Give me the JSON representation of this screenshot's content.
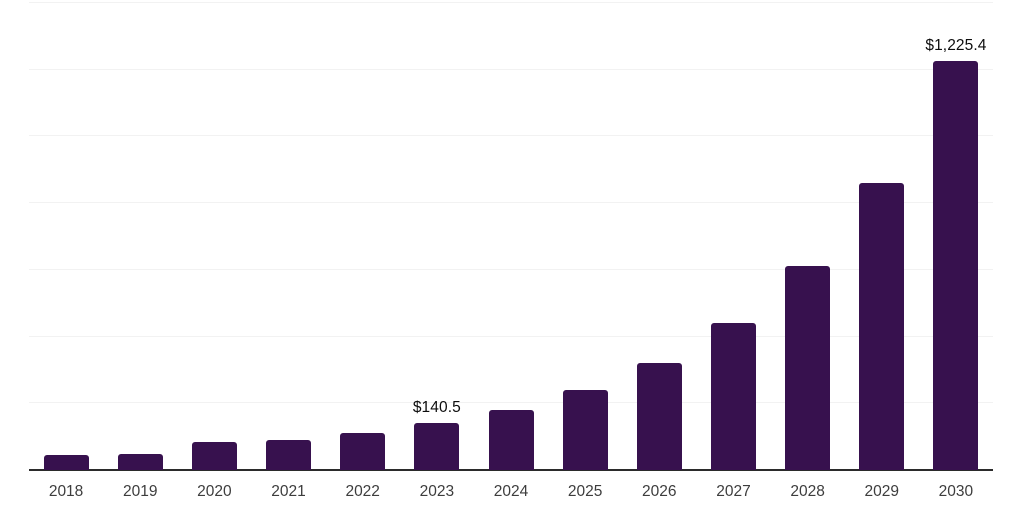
{
  "chart_data": {
    "type": "bar",
    "title": "",
    "xlabel": "",
    "ylabel": "",
    "categories": [
      "2018",
      "2019",
      "2020",
      "2021",
      "2022",
      "2023",
      "2024",
      "2025",
      "2026",
      "2027",
      "2028",
      "2029",
      "2030"
    ],
    "values": [
      44,
      48,
      83,
      89,
      110,
      140.5,
      181,
      241,
      322,
      441,
      612,
      859,
      1225.4
    ],
    "value_labels": {
      "2023": "$140.5",
      "2030": "$1,225.4"
    },
    "ylim": [
      0,
      1400
    ],
    "gridline_step": 200,
    "grid": "horizontal",
    "legend_position": "none",
    "colors": {
      "bar": "#37114e",
      "gridline": "#f2f2f2",
      "baseline": "#2b2b2b",
      "tick_label": "#3d3d3d",
      "value_label": "#0d0d0d",
      "background": "#ffffff"
    }
  }
}
